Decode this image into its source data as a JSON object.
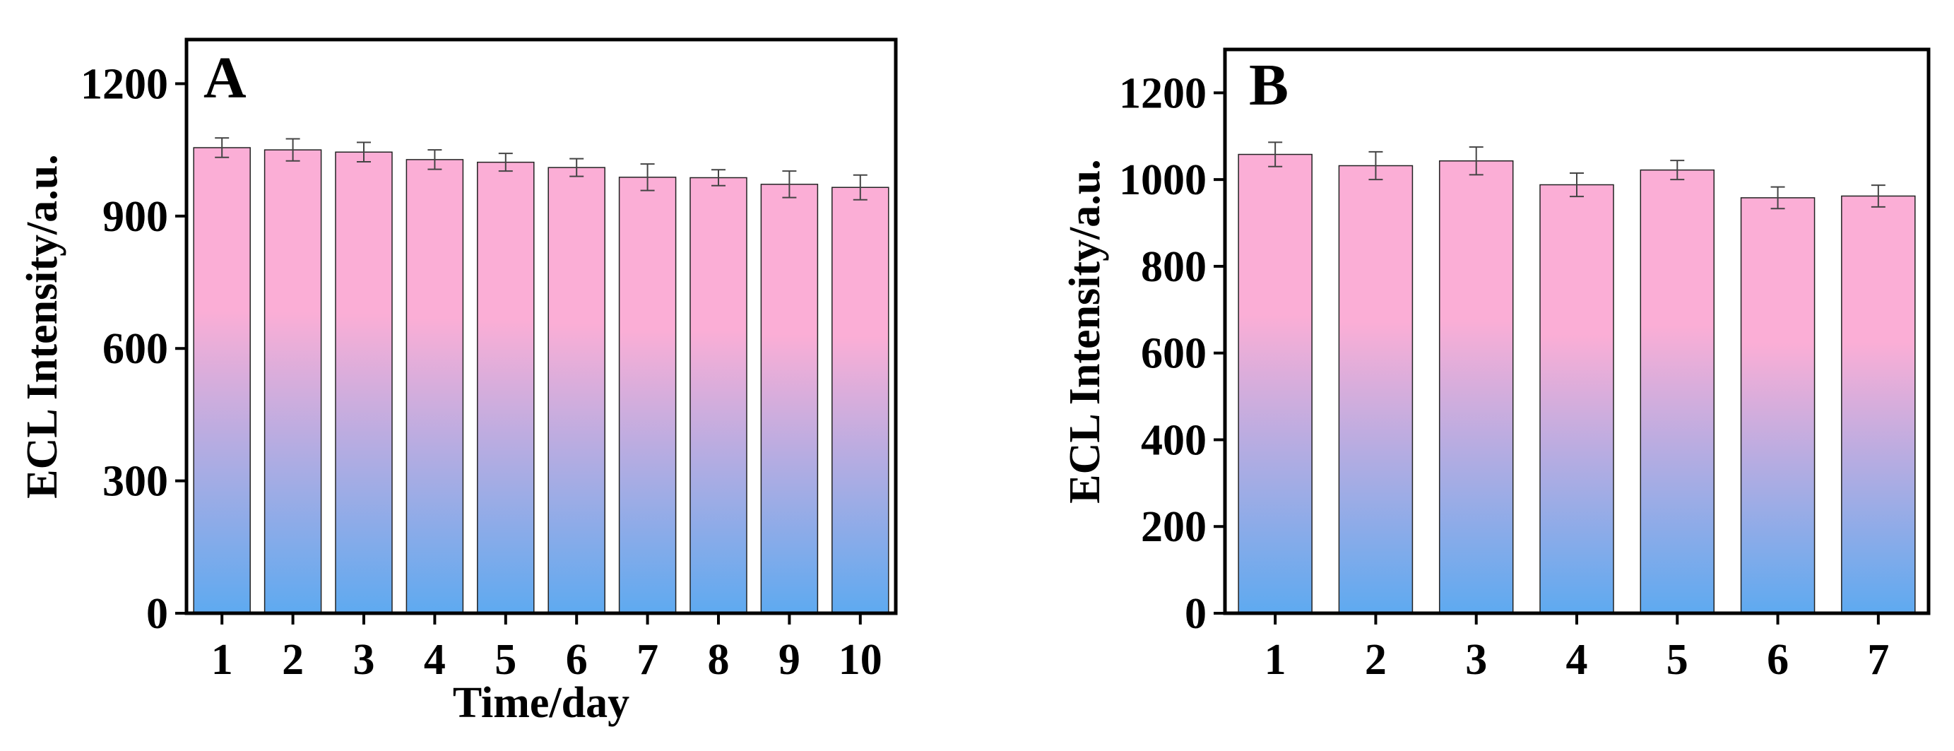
{
  "chart_data": [
    {
      "type": "bar",
      "panel_label": "A",
      "xlabel": "Time/day",
      "ylabel": "ECL Intensity/a.u.",
      "categories": [
        "1",
        "2",
        "3",
        "4",
        "5",
        "6",
        "7",
        "8",
        "9",
        "10"
      ],
      "values": [
        1055,
        1050,
        1045,
        1028,
        1022,
        1010,
        988,
        987,
        972,
        965
      ],
      "errors": [
        22,
        25,
        22,
        22,
        20,
        20,
        30,
        18,
        30,
        28
      ],
      "ylim": [
        0,
        1300
      ],
      "yticks": [
        0,
        300,
        600,
        900,
        1200
      ],
      "gradient_top": "#fbaed6",
      "gradient_bottom": "#5eaaf0"
    },
    {
      "type": "bar",
      "panel_label": "B",
      "xlabel": "",
      "ylabel": "ECL Intensity/a.u.",
      "categories": [
        "1",
        "2",
        "3",
        "4",
        "5",
        "6",
        "7"
      ],
      "values": [
        1058,
        1032,
        1043,
        988,
        1022,
        958,
        962
      ],
      "errors": [
        28,
        32,
        32,
        27,
        22,
        25,
        25
      ],
      "ylim": [
        0,
        1300
      ],
      "yticks": [
        0,
        200,
        400,
        600,
        800,
        1000,
        1200
      ],
      "gradient_top": "#fbaed6",
      "gradient_bottom": "#5eaaf0"
    }
  ]
}
